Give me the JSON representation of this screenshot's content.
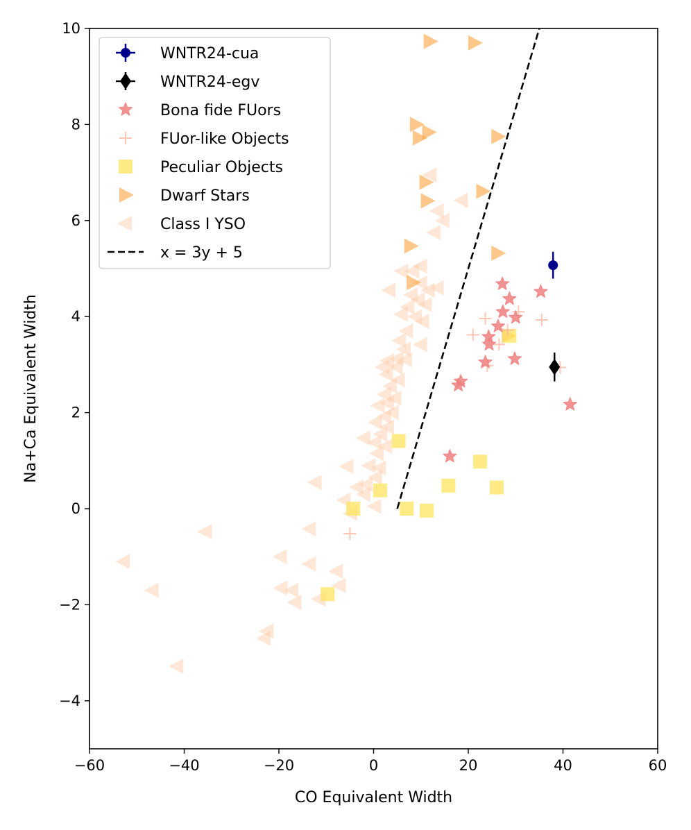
{
  "chart_data": {
    "type": "scatter",
    "title": "",
    "xlabel": "CO Equivalent Width",
    "ylabel": "Na+Ca Equivalent Width",
    "xlim": [
      -60,
      60
    ],
    "ylim": [
      -5,
      10
    ],
    "xticks": [
      -60,
      -40,
      -20,
      0,
      20,
      40,
      60
    ],
    "yticks": [
      -4,
      -2,
      0,
      2,
      4,
      6,
      8,
      10
    ],
    "xtick_labels": [
      "−60",
      "−40",
      "−20",
      "0",
      "20",
      "40",
      "60"
    ],
    "ytick_labels": [
      "−4",
      "−2",
      "0",
      "2",
      "4",
      "6",
      "8",
      "10"
    ],
    "grid": false,
    "legend_position": "upper-left",
    "series": [
      {
        "name": "WNTR24-cua",
        "marker": "circle",
        "color": "#00008b",
        "opacity": 1,
        "points": [
          {
            "x": 37.9,
            "y": 5.07,
            "yerr": 0.28
          }
        ]
      },
      {
        "name": "WNTR24-egv",
        "marker": "thin-diamond",
        "color": "#000000",
        "opacity": 1,
        "points": [
          {
            "x": 38.2,
            "y": 2.95,
            "yerr": 0.3
          }
        ]
      },
      {
        "name": "Bona fide FUors",
        "marker": "star",
        "color": "#f08080",
        "opacity": 0.85,
        "points": [
          {
            "x": 27.2,
            "y": 4.68
          },
          {
            "x": 35.3,
            "y": 4.52
          },
          {
            "x": 28.7,
            "y": 4.37
          },
          {
            "x": 27.3,
            "y": 4.1
          },
          {
            "x": 30.0,
            "y": 3.98
          },
          {
            "x": 26.3,
            "y": 3.8
          },
          {
            "x": 24.3,
            "y": 3.58
          },
          {
            "x": 24.4,
            "y": 3.42
          },
          {
            "x": 29.8,
            "y": 3.12
          },
          {
            "x": 23.6,
            "y": 3.05
          },
          {
            "x": 18.4,
            "y": 2.65
          },
          {
            "x": 17.9,
            "y": 2.57
          },
          {
            "x": 41.5,
            "y": 2.17
          },
          {
            "x": 16.1,
            "y": 1.09
          }
        ]
      },
      {
        "name": "FUor-like Objects",
        "marker": "plus",
        "color": "#ffb6a3",
        "opacity": 0.8,
        "points": [
          {
            "x": 23.6,
            "y": 3.96
          },
          {
            "x": 35.5,
            "y": 3.93
          },
          {
            "x": 30.6,
            "y": 4.1
          },
          {
            "x": 21.0,
            "y": 3.62
          },
          {
            "x": 28.3,
            "y": 3.72
          },
          {
            "x": 26.5,
            "y": 3.42
          },
          {
            "x": 24.0,
            "y": 2.98
          },
          {
            "x": 39.4,
            "y": 2.94
          },
          {
            "x": -5.0,
            "y": -0.52
          }
        ]
      },
      {
        "name": "Peculiar Objects",
        "marker": "square",
        "color": "#ffe45c",
        "opacity": 0.75,
        "points": [
          {
            "x": 28.7,
            "y": 3.6
          },
          {
            "x": 5.3,
            "y": 1.41
          },
          {
            "x": 22.5,
            "y": 0.98
          },
          {
            "x": 15.8,
            "y": 0.48
          },
          {
            "x": 26.0,
            "y": 0.44
          },
          {
            "x": 1.4,
            "y": 0.38
          },
          {
            "x": -4.3,
            "y": 0.0
          },
          {
            "x": 7.0,
            "y": 0.0
          },
          {
            "x": 11.2,
            "y": -0.04
          },
          {
            "x": -9.7,
            "y": -1.78
          }
        ]
      },
      {
        "name": "Dwarf Stars",
        "marker": "triangle-right",
        "color": "#ffa23a",
        "opacity": 0.6,
        "points": [
          {
            "x": 11.9,
            "y": 9.73
          },
          {
            "x": 21.3,
            "y": 9.7
          },
          {
            "x": 9.0,
            "y": 8.0
          },
          {
            "x": 11.6,
            "y": 7.84
          },
          {
            "x": 9.6,
            "y": 7.72
          },
          {
            "x": 26.2,
            "y": 7.75
          },
          {
            "x": 11.0,
            "y": 6.8
          },
          {
            "x": 23.0,
            "y": 6.61
          },
          {
            "x": 11.3,
            "y": 6.41
          },
          {
            "x": 7.8,
            "y": 5.47
          },
          {
            "x": 26.2,
            "y": 5.32
          },
          {
            "x": 8.3,
            "y": 4.71
          },
          {
            "x": 28.4,
            "y": 3.6
          }
        ]
      },
      {
        "name": "Class I YSO",
        "marker": "triangle-left",
        "color": "#ffc9a6",
        "opacity": 0.45,
        "points": [
          {
            "x": 12.0,
            "y": 6.95
          },
          {
            "x": 18.6,
            "y": 6.42
          },
          {
            "x": 13.5,
            "y": 6.2
          },
          {
            "x": 14.7,
            "y": 6.0
          },
          {
            "x": 12.8,
            "y": 5.75
          },
          {
            "x": 10.0,
            "y": 5.05
          },
          {
            "x": 8.3,
            "y": 4.95
          },
          {
            "x": 6.0,
            "y": 4.95
          },
          {
            "x": 10.0,
            "y": 4.7
          },
          {
            "x": 11.6,
            "y": 4.55
          },
          {
            "x": 13.5,
            "y": 4.6
          },
          {
            "x": 3.3,
            "y": 4.55
          },
          {
            "x": 8.0,
            "y": 4.45
          },
          {
            "x": 9.5,
            "y": 4.35
          },
          {
            "x": 11.0,
            "y": 4.25
          },
          {
            "x": 7.3,
            "y": 4.2
          },
          {
            "x": 5.9,
            "y": 4.05
          },
          {
            "x": 8.9,
            "y": 4.0
          },
          {
            "x": 10.4,
            "y": 3.9
          },
          {
            "x": 7.0,
            "y": 3.7
          },
          {
            "x": 5.5,
            "y": 3.5
          },
          {
            "x": 10.0,
            "y": 3.42
          },
          {
            "x": 6.5,
            "y": 3.32
          },
          {
            "x": 5.0,
            "y": 3.12
          },
          {
            "x": 6.8,
            "y": 3.1
          },
          {
            "x": 3.0,
            "y": 3.08
          },
          {
            "x": 2.0,
            "y": 2.95
          },
          {
            "x": 4.8,
            "y": 2.95
          },
          {
            "x": 2.8,
            "y": 2.8
          },
          {
            "x": 5.3,
            "y": 2.68
          },
          {
            "x": 3.6,
            "y": 2.55
          },
          {
            "x": 2.4,
            "y": 2.38
          },
          {
            "x": 4.5,
            "y": 2.3
          },
          {
            "x": 3.0,
            "y": 2.2
          },
          {
            "x": 1.0,
            "y": 2.15
          },
          {
            "x": 4.0,
            "y": 2.0
          },
          {
            "x": 2.4,
            "y": 1.92
          },
          {
            "x": 0.5,
            "y": 1.8
          },
          {
            "x": 3.0,
            "y": 1.7
          },
          {
            "x": 1.6,
            "y": 1.55
          },
          {
            "x": -2.0,
            "y": 1.47
          },
          {
            "x": 0.3,
            "y": 1.38
          },
          {
            "x": 2.6,
            "y": 1.3
          },
          {
            "x": 0.8,
            "y": 1.15
          },
          {
            "x": -0.9,
            "y": 0.9
          },
          {
            "x": 1.3,
            "y": 0.85
          },
          {
            "x": -5.6,
            "y": 0.88
          },
          {
            "x": 0.5,
            "y": 0.65
          },
          {
            "x": -1.5,
            "y": 0.5
          },
          {
            "x": -3.5,
            "y": 0.45
          },
          {
            "x": -12.3,
            "y": 0.55
          },
          {
            "x": -2.0,
            "y": 0.3
          },
          {
            "x": -6.2,
            "y": 0.18
          },
          {
            "x": 0.3,
            "y": 0.05
          },
          {
            "x": -4.8,
            "y": -0.1
          },
          {
            "x": -13.5,
            "y": -0.42
          },
          {
            "x": -35.5,
            "y": -0.48
          },
          {
            "x": -19.6,
            "y": -1.0
          },
          {
            "x": -52.8,
            "y": -1.1
          },
          {
            "x": -13.5,
            "y": -1.15
          },
          {
            "x": -7.8,
            "y": -1.3
          },
          {
            "x": -7.2,
            "y": -1.6
          },
          {
            "x": -19.5,
            "y": -1.65
          },
          {
            "x": -17.2,
            "y": -1.7
          },
          {
            "x": -46.7,
            "y": -1.7
          },
          {
            "x": -11.5,
            "y": -1.88
          },
          {
            "x": -16.6,
            "y": -1.95
          },
          {
            "x": -22.5,
            "y": -2.55
          },
          {
            "x": -23.1,
            "y": -2.7
          },
          {
            "x": -41.5,
            "y": -3.28
          }
        ]
      }
    ],
    "lines": [
      {
        "name": "x = 3y + 5",
        "style": "dashed",
        "color": "#000000",
        "x": [
          5,
          35
        ],
        "y": [
          0,
          10
        ]
      }
    ],
    "legend": [
      "WNTR24-cua",
      "WNTR24-egv",
      "Bona fide FUors",
      "FUor-like Objects",
      "Peculiar Objects",
      "Dwarf Stars",
      "Class I YSO",
      "x = 3y + 5"
    ]
  }
}
